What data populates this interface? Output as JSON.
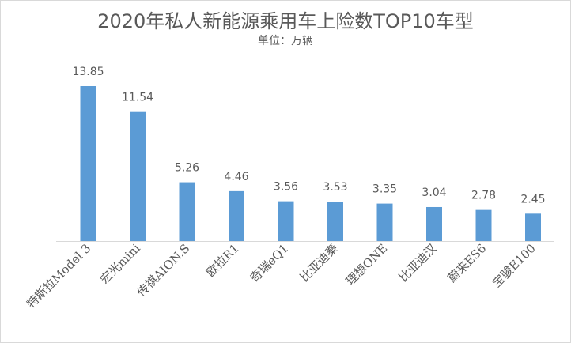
{
  "chart_data": {
    "type": "bar",
    "title": "2020年私人新能源乘用车上险数TOP10车型",
    "subtitle": "单位：万辆",
    "categories": [
      "特斯拉Model 3",
      "宏光mini",
      "传祺AION.S",
      "欧拉R1",
      "奇瑞eQ1",
      "比亚迪秦",
      "理想ONE",
      "比亚迪汉",
      "蔚来ES6",
      "宝骏E100"
    ],
    "values": [
      13.85,
      11.54,
      5.26,
      4.46,
      3.56,
      3.53,
      3.35,
      3.04,
      2.78,
      2.45
    ],
    "value_labels": [
      "13.85",
      "11.54",
      "5.26",
      "4.46",
      "3.56",
      "3.53",
      "3.35",
      "3.04",
      "2.78",
      "2.45"
    ],
    "ylim": [
      0,
      13.85
    ],
    "grid": false,
    "legend": "none",
    "bar_color": "#5b9bd5",
    "axis_color": "#d9d9d9",
    "text_color": "#595959"
  }
}
